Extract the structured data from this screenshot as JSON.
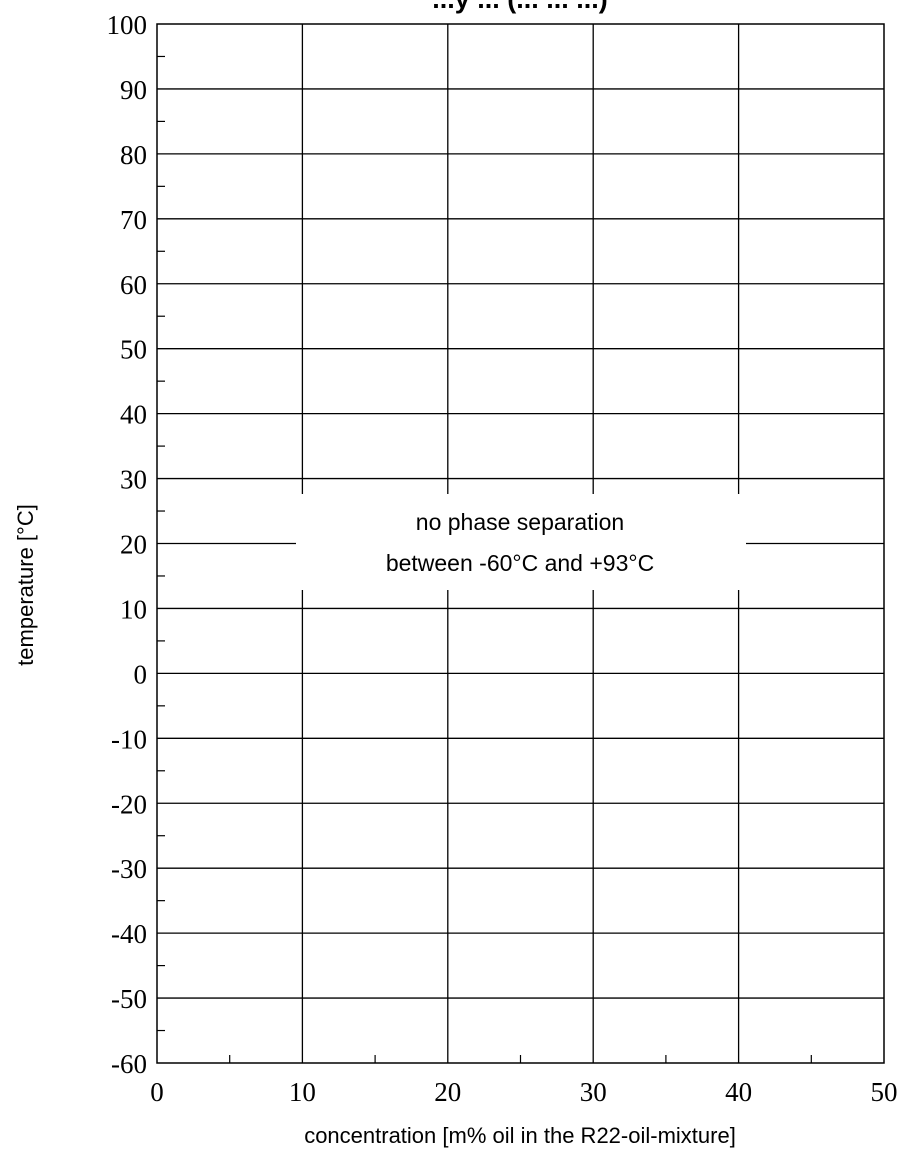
{
  "chart_data": {
    "type": "line",
    "title": "...y ... (... ... ...)",
    "xlabel": "concentration [m% oil in the R22-oil-mixture]",
    "ylabel": "temperature [°C]",
    "xlim": [
      0,
      50
    ],
    "ylim": [
      -60,
      100
    ],
    "x_ticks": [
      "0",
      "10",
      "20",
      "30",
      "40",
      "50"
    ],
    "y_ticks": [
      "100",
      "90",
      "80",
      "70",
      "60",
      "50",
      "40",
      "30",
      "20",
      "10",
      "0",
      "-10",
      "-20",
      "-30",
      "-40",
      "-50",
      "-60"
    ],
    "grid": true,
    "series": [],
    "annotation": {
      "line1": "no phase separation",
      "line2": "between -60°C and +93°C"
    }
  }
}
